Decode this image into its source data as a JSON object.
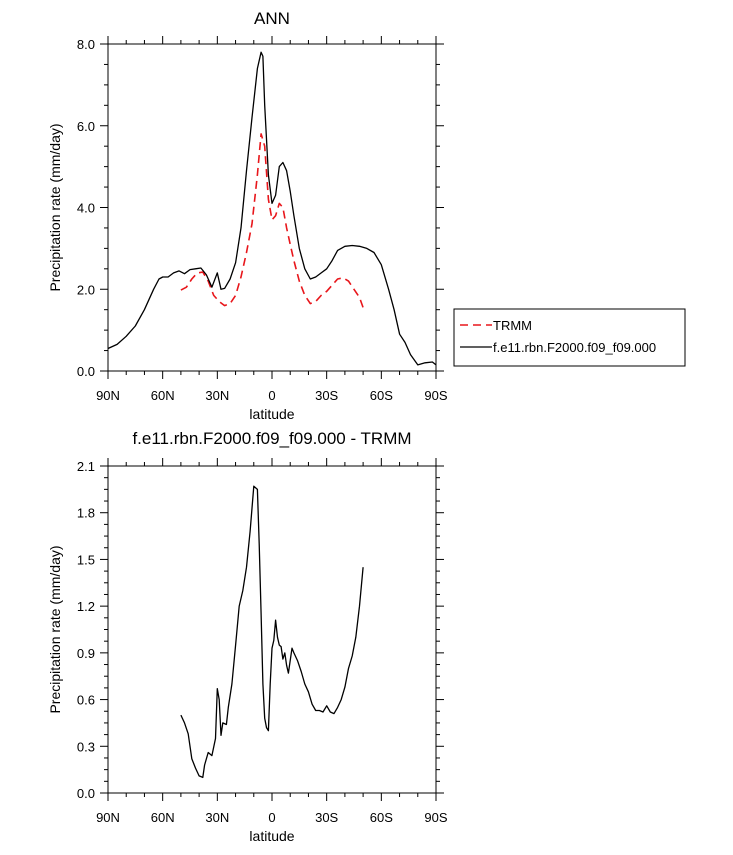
{
  "chart_data": [
    {
      "type": "line",
      "title": "ANN",
      "xlabel": "latitude",
      "ylabel": "Precipitation rate (mm/day)",
      "xlim": [
        90,
        -90
      ],
      "ylim": [
        0,
        8
      ],
      "x_ticks": [
        {
          "v": 90,
          "label": "90N"
        },
        {
          "v": 60,
          "label": "60N"
        },
        {
          "v": 30,
          "label": "30N"
        },
        {
          "v": 0,
          "label": "0"
        },
        {
          "v": -30,
          "label": "30S"
        },
        {
          "v": -60,
          "label": "60S"
        },
        {
          "v": -90,
          "label": "90S"
        }
      ],
      "y_ticks": [
        {
          "v": 0,
          "label": "0.0"
        },
        {
          "v": 2,
          "label": "2.0"
        },
        {
          "v": 4,
          "label": "4.0"
        },
        {
          "v": 6,
          "label": "6.0"
        },
        {
          "v": 8,
          "label": "8.0"
        }
      ],
      "legend": {
        "placement": "right",
        "entries": [
          "TRMM",
          "f.e11.rbn.F2000.f09_f09.000"
        ]
      },
      "series": [
        {
          "name": "TRMM",
          "color": "#e8161b",
          "dash": "dashed",
          "x": [
            50,
            47,
            44,
            41,
            38,
            35,
            32,
            29,
            26,
            23,
            20,
            17,
            14,
            11,
            8,
            6,
            4,
            2,
            0,
            -2,
            -4,
            -6,
            -8,
            -10,
            -12,
            -15,
            -18,
            -21,
            -24,
            -27,
            -30,
            -33,
            -36,
            -39,
            -42,
            -45,
            -48,
            -50
          ],
          "y": [
            1.98,
            2.05,
            2.25,
            2.4,
            2.42,
            2.2,
            1.85,
            1.7,
            1.6,
            1.65,
            1.85,
            2.3,
            2.9,
            3.6,
            4.8,
            5.8,
            5.5,
            4.2,
            3.7,
            3.8,
            4.1,
            4.0,
            3.5,
            3.1,
            2.7,
            2.2,
            1.85,
            1.65,
            1.7,
            1.85,
            1.95,
            2.1,
            2.25,
            2.28,
            2.2,
            2.0,
            1.8,
            1.55
          ]
        },
        {
          "name": "f.e11.rbn.F2000.f09_f09.000",
          "color": "#000000",
          "dash": "solid",
          "x": [
            90,
            85,
            80,
            75,
            70,
            65,
            62,
            60,
            57,
            54,
            51,
            48,
            45,
            42,
            39,
            36,
            33,
            30,
            28,
            26,
            23,
            20,
            17,
            14,
            11,
            8,
            6,
            5,
            4,
            2,
            0,
            -2,
            -4,
            -6,
            -8,
            -10,
            -12,
            -15,
            -18,
            -21,
            -24,
            -27,
            -30,
            -33,
            -36,
            -40,
            -44,
            -48,
            -52,
            -56,
            -60,
            -64,
            -67,
            -70,
            -73,
            -76,
            -80,
            -84,
            -88,
            -90
          ],
          "y": [
            0.55,
            0.65,
            0.85,
            1.1,
            1.5,
            2.0,
            2.25,
            2.3,
            2.3,
            2.4,
            2.45,
            2.38,
            2.48,
            2.5,
            2.52,
            2.35,
            2.05,
            2.4,
            2.0,
            2.02,
            2.25,
            2.65,
            3.5,
            4.9,
            6.2,
            7.4,
            7.8,
            7.7,
            6.5,
            4.8,
            4.1,
            4.3,
            5.0,
            5.1,
            4.9,
            4.4,
            3.8,
            3.0,
            2.5,
            2.25,
            2.3,
            2.4,
            2.5,
            2.7,
            2.95,
            3.05,
            3.07,
            3.05,
            3.0,
            2.9,
            2.6,
            2.0,
            1.5,
            0.9,
            0.7,
            0.4,
            0.15,
            0.2,
            0.22,
            0.15
          ]
        }
      ]
    },
    {
      "type": "line",
      "title": "f.e11.rbn.F2000.f09_f09.000 - TRMM",
      "xlabel": "latitude",
      "ylabel": "Precipitation rate (mm/day)",
      "xlim": [
        90,
        -90
      ],
      "ylim": [
        0,
        2.1
      ],
      "x_ticks": [
        {
          "v": 90,
          "label": "90N"
        },
        {
          "v": 60,
          "label": "60N"
        },
        {
          "v": 30,
          "label": "30N"
        },
        {
          "v": 0,
          "label": "0"
        },
        {
          "v": -30,
          "label": "30S"
        },
        {
          "v": -60,
          "label": "60S"
        },
        {
          "v": -90,
          "label": "90S"
        }
      ],
      "y_ticks": [
        {
          "v": 0,
          "label": "0.0"
        },
        {
          "v": 0.3,
          "label": "0.3"
        },
        {
          "v": 0.6,
          "label": "0.6"
        },
        {
          "v": 0.9,
          "label": "0.9"
        },
        {
          "v": 1.2,
          "label": "1.2"
        },
        {
          "v": 1.5,
          "label": "1.5"
        },
        {
          "v": 1.8,
          "label": "1.8"
        },
        {
          "v": 2.1,
          "label": "2.1"
        }
      ],
      "series": [
        {
          "name": "f.e11.rbn.F2000.f09_f09.000 - TRMM",
          "color": "#000000",
          "dash": "solid",
          "x": [
            50,
            48,
            46,
            44,
            42,
            40,
            38,
            37,
            35,
            33,
            31,
            30,
            29,
            28,
            27,
            25,
            24,
            22,
            20,
            18,
            16,
            14,
            12,
            10,
            8,
            7,
            6,
            5,
            4,
            3,
            2,
            1,
            0,
            -1,
            -2,
            -3,
            -4,
            -5,
            -6,
            -7,
            -8,
            -9,
            -10,
            -11,
            -12,
            -14,
            -16,
            -18,
            -20,
            -22,
            -24,
            -26,
            -28,
            -30,
            -32,
            -34,
            -36,
            -38,
            -40,
            -42,
            -44,
            -46,
            -48,
            -50
          ],
          "y": [
            0.5,
            0.45,
            0.38,
            0.22,
            0.16,
            0.11,
            0.1,
            0.18,
            0.26,
            0.24,
            0.35,
            0.67,
            0.6,
            0.37,
            0.45,
            0.44,
            0.55,
            0.7,
            0.95,
            1.2,
            1.3,
            1.45,
            1.68,
            1.97,
            1.95,
            1.6,
            1.15,
            0.7,
            0.48,
            0.42,
            0.4,
            0.7,
            0.93,
            0.98,
            1.11,
            1.0,
            0.95,
            0.94,
            0.86,
            0.9,
            0.82,
            0.77,
            0.85,
            0.93,
            0.9,
            0.85,
            0.78,
            0.7,
            0.65,
            0.57,
            0.53,
            0.53,
            0.52,
            0.56,
            0.52,
            0.51,
            0.55,
            0.6,
            0.68,
            0.8,
            0.88,
            1.0,
            1.2,
            1.45
          ]
        }
      ]
    }
  ]
}
